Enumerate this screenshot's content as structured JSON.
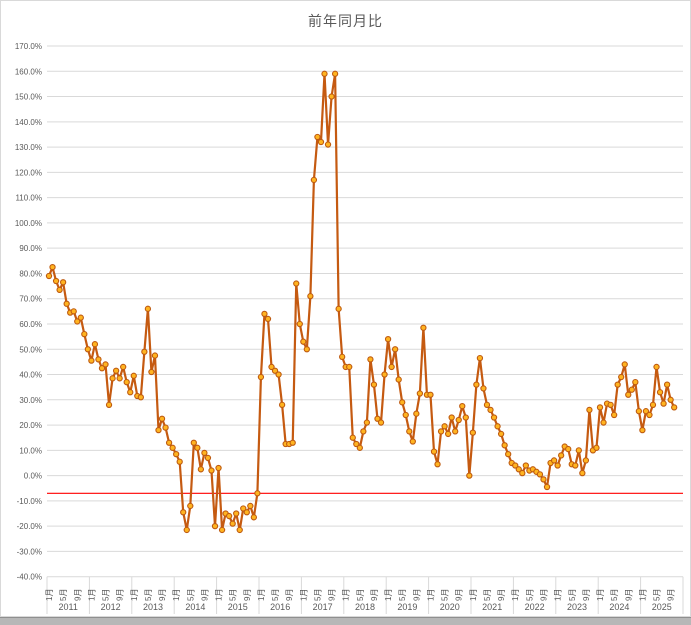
{
  "title": "前年同月比",
  "colors": {
    "line": "#C55A11",
    "marker_fill": "#FFB420",
    "marker_stroke": "#BE5A10",
    "reference_line": "#FF0000",
    "gridline": "#D9D9D9",
    "axis_text": "#595959",
    "chart_border": "#D9D9D9"
  },
  "y_axis": {
    "labels": [
      "170.0%",
      "160.0%",
      "150.0%",
      "140.0%",
      "130.0%",
      "120.0%",
      "110.0%",
      "100.0%",
      "90.0%",
      "80.0%",
      "70.0%",
      "60.0%",
      "50.0%",
      "40.0%",
      "30.0%",
      "20.0%",
      "10.0%",
      "0.0%",
      "-10.0%",
      "-20.0%",
      "-30.0%",
      "-40.0%"
    ]
  },
  "x_axis": {
    "month_tick_labels": [
      "1月",
      "5月",
      "9月"
    ],
    "month_tick_offsets": [
      0,
      4,
      8
    ],
    "years": [
      "2011",
      "2012",
      "2013",
      "2014",
      "2015",
      "2016",
      "2017",
      "2018",
      "2019",
      "2020",
      "2021",
      "2022",
      "2023",
      "2024",
      "2025"
    ]
  },
  "chart_data": {
    "type": "line",
    "title": "前年同月比",
    "x_start": "2011-01",
    "frequency": "monthly",
    "ylim": [
      -40,
      170
    ],
    "y_tick_step": 10,
    "grid": true,
    "reference_line_y": -7,
    "values": [
      79,
      82.5,
      77,
      73.5,
      76.5,
      68,
      64.5,
      65,
      61,
      62.5,
      56,
      50,
      45.5,
      52,
      46,
      42.5,
      44,
      28,
      38.5,
      41.5,
      38.5,
      43,
      37,
      33,
      39.5,
      31.5,
      31,
      49,
      66,
      41,
      47.5,
      18,
      22.5,
      19,
      13,
      11,
      8.5,
      5.5,
      -14.5,
      -21.5,
      -12,
      13,
      11,
      2.5,
      9,
      7,
      2,
      -20,
      3,
      -21.5,
      -15,
      -16,
      -19,
      -15,
      -21.5,
      -13,
      -14.5,
      -12,
      -16.5,
      -7,
      39,
      64,
      62,
      43,
      41.5,
      40,
      28,
      12.5,
      12.5,
      13,
      76,
      60,
      53,
      50,
      71,
      117,
      134,
      132,
      159,
      131,
      150,
      159,
      66,
      47,
      43,
      43,
      15,
      12.5,
      11,
      17.5,
      21,
      46,
      36,
      22.5,
      21,
      40,
      54,
      43,
      50,
      38,
      29,
      24,
      17.5,
      13.5,
      24.5,
      32.5,
      58.5,
      32,
      32,
      9.5,
      4.5,
      17.5,
      19.5,
      16.5,
      23,
      17.5,
      22,
      27.5,
      23,
      0,
      17,
      36,
      46.5,
      34.5,
      28,
      26,
      23,
      19.5,
      16.5,
      12,
      8.5,
      5,
      4,
      2.5,
      1,
      4,
      2,
      2.5,
      1.5,
      0.5,
      -1.5,
      -4.5,
      5,
      6,
      4,
      8,
      11.5,
      10.5,
      4.5,
      4,
      10,
      1,
      6,
      26,
      10,
      11,
      27,
      21,
      28.5,
      28,
      24,
      36,
      39,
      44,
      32,
      34,
      37,
      25.5,
      18,
      25.5,
      24,
      28,
      43,
      33,
      28.5,
      36,
      30,
      27
    ]
  }
}
